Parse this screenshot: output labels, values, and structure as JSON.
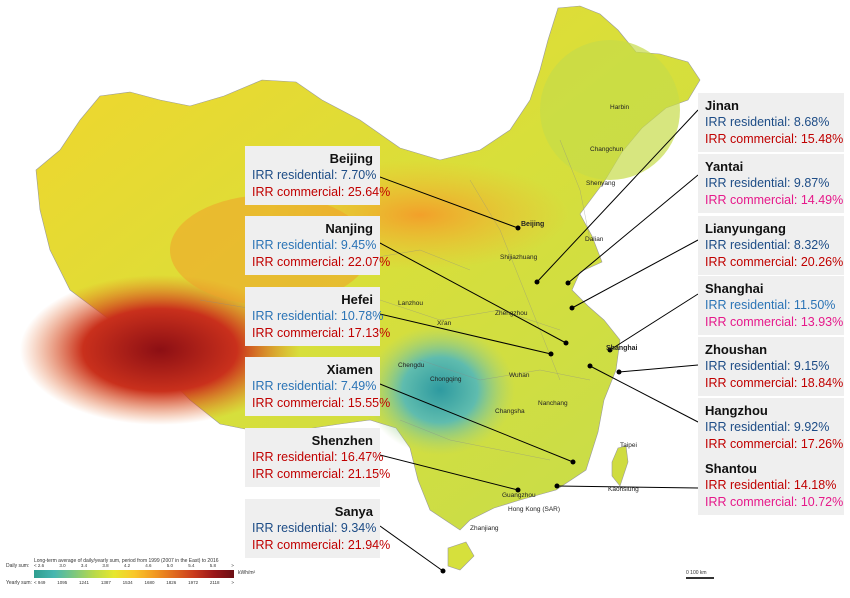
{
  "colors": {
    "residential_dark": "#1d4c86",
    "residential_light": "#2b74b6",
    "commercial": "#c00000",
    "commercial_pink": "#e6198a"
  },
  "callouts": [
    {
      "name": "Beijing",
      "residential": "IRR residential: 7.70%",
      "commercial": "IRR commercial: 25.64%"
    },
    {
      "name": "Nanjing",
      "residential": "IRR residential: 9.45%",
      "commercial": "IRR commercial: 22.07%"
    },
    {
      "name": "Hefei",
      "residential": "IRR residential: 10.78%",
      "commercial": "IRR commercial: 17.13%"
    },
    {
      "name": "Xiamen",
      "residential": "IRR residential: 7.49%",
      "commercial": "IRR commercial: 15.55%"
    },
    {
      "name": "Shenzhen",
      "residential": "IRR residential: 16.47%",
      "commercial": "IRR commercial: 21.15%"
    },
    {
      "name": "Sanya",
      "residential": "IRR residential: 9.34%",
      "commercial": "IRR commercial: 21.94%"
    },
    {
      "name": "Jinan",
      "residential": "IRR residential: 8.68%",
      "commercial": "IRR commercial: 15.48%"
    },
    {
      "name": "Yantai",
      "residential": "IRR residential: 9.87%",
      "commercial": "IRR commercial: 14.49%"
    },
    {
      "name": "Lianyungang",
      "residential": "IRR residential: 8.32%",
      "commercial": "IRR commercial: 20.26%"
    },
    {
      "name": "Shanghai",
      "residential": "IRR residential: 11.50%",
      "commercial": "IRR commercial: 13.93%"
    },
    {
      "name": "Zhoushan",
      "residential": "IRR residential: 9.15%",
      "commercial": "IRR commercial: 18.84%"
    },
    {
      "name": "Hangzhou",
      "residential": "IRR residential: 9.92%",
      "commercial": "IRR commercial: 17.26%"
    },
    {
      "name": "Shantou",
      "residential": "IRR residential: 14.18%",
      "commercial": "IRR commercial: 10.72%"
    }
  ],
  "map_labels": {
    "beijing": "Beijing",
    "shanghai": "Shanghai",
    "hong_kong": "Hong Kong (SAR)",
    "taipei": "Taipei",
    "xian": "Xi'an",
    "wuhan": "Wuhan",
    "changsha": "Changsha",
    "nanchang": "Nanchang",
    "chongqing": "Chongqing",
    "chengdu": "Chengdu",
    "guangzhou": "Guangzhou",
    "zhanjiang": "Zhanjiang",
    "zhengzhou": "Zhengzhou",
    "shijiazhuang": "Shijiazhuang",
    "dalian": "Dalian",
    "changchun": "Changchun",
    "harbin": "Harbin",
    "shenyang": "Shenyang",
    "lanzhou": "Lanzhou",
    "kaohsiung": "Kaohsiung"
  },
  "legend": {
    "title": "Long-term average of daily/yearly sum, period from 1999 (2007 in the East) to 2016",
    "daily_label": "Daily sum:",
    "yearly_label": "Yearly sum:",
    "daily_ticks": [
      "< 2.6",
      "3.0",
      "3.4",
      "3.8",
      "4.2",
      "4.6",
      "5.0",
      "5.4",
      "5.8",
      ">"
    ],
    "yearly_ticks": [
      "< 949",
      "1095",
      "1241",
      "1387",
      "1534",
      "1680",
      "1826",
      "1972",
      "2118",
      ">"
    ],
    "unit": "kWh/m²"
  },
  "scale": {
    "label": "0      100 km"
  }
}
